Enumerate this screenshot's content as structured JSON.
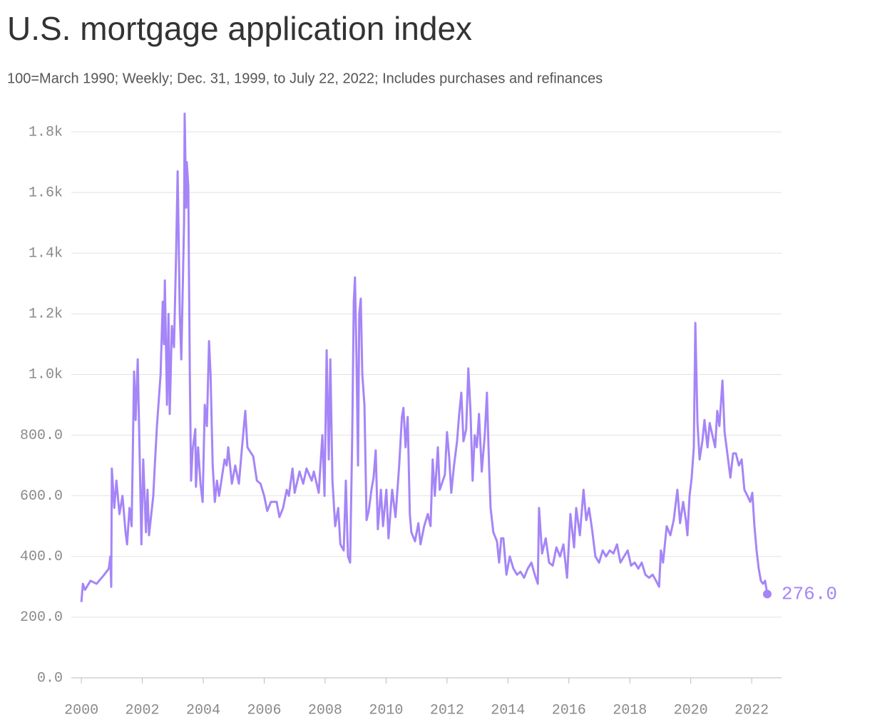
{
  "chart_data": {
    "type": "line",
    "title": "U.S. mortgage application index",
    "subtitle": "100=March 1990; Weekly; Dec. 31, 1999, to July 22, 2022; Includes purchases and refinances",
    "color": "#a585f7",
    "last_value_label": "276.0",
    "grid": true,
    "xlim": [
      1999.67,
      2022.98
    ],
    "xticks": [
      2000,
      2002,
      2004,
      2006,
      2008,
      2010,
      2012,
      2014,
      2016,
      2018,
      2020,
      2022
    ],
    "ylim": [
      0,
      1800
    ],
    "yticks": [
      {
        "value": 0,
        "label": "0.0"
      },
      {
        "value": 200,
        "label": "200.0"
      },
      {
        "value": 400,
        "label": "400.0"
      },
      {
        "value": 600,
        "label": "600.0"
      },
      {
        "value": 800,
        "label": "800.0"
      },
      {
        "value": 1000,
        "label": "1.0k"
      },
      {
        "value": 1200,
        "label": "1.2k"
      },
      {
        "value": 1400,
        "label": "1.4k"
      },
      {
        "value": 1600,
        "label": "1.6k"
      },
      {
        "value": 1800,
        "label": "1.8k"
      }
    ],
    "x": [
      2000.0,
      2000.05,
      2000.12,
      2000.3,
      2000.5,
      2000.75,
      2000.9,
      2000.95,
      2000.98,
      2001.0,
      2001.08,
      2001.15,
      2001.25,
      2001.35,
      2001.45,
      2001.5,
      2001.58,
      2001.65,
      2001.73,
      2001.78,
      2001.85,
      2001.92,
      2001.97,
      2002.03,
      2002.12,
      2002.17,
      2002.22,
      2002.36,
      2002.41,
      2002.48,
      2002.6,
      2002.67,
      2002.71,
      2002.74,
      2002.81,
      2002.86,
      2002.9,
      2002.97,
      2003.04,
      2003.11,
      2003.16,
      2003.23,
      2003.28,
      2003.37,
      2003.39,
      2003.44,
      2003.46,
      2003.51,
      2003.53,
      2003.56,
      2003.6,
      2003.65,
      2003.74,
      2003.76,
      2003.83,
      2003.91,
      2003.98,
      2004.05,
      2004.12,
      2004.19,
      2004.24,
      2004.31,
      2004.38,
      2004.45,
      2004.52,
      2004.7,
      2004.77,
      2004.82,
      2004.94,
      2005.05,
      2005.17,
      2005.29,
      2005.38,
      2005.45,
      2005.64,
      2005.76,
      2005.88,
      2006.0,
      2006.1,
      2006.22,
      2006.41,
      2006.5,
      2006.62,
      2006.74,
      2006.81,
      2006.93,
      2007.0,
      2007.16,
      2007.28,
      2007.39,
      2007.56,
      2007.63,
      2007.79,
      2007.91,
      2007.98,
      2008.05,
      2008.12,
      2008.17,
      2008.24,
      2008.33,
      2008.43,
      2008.5,
      2008.61,
      2008.68,
      2008.75,
      2008.82,
      2008.89,
      2008.94,
      2008.98,
      2009.03,
      2009.08,
      2009.12,
      2009.17,
      2009.22,
      2009.29,
      2009.36,
      2009.43,
      2009.52,
      2009.59,
      2009.66,
      2009.73,
      2009.83,
      2009.9,
      2010.01,
      2010.08,
      2010.2,
      2010.31,
      2010.43,
      2010.52,
      2010.57,
      2010.64,
      2010.71,
      2010.78,
      2010.83,
      2010.95,
      2011.06,
      2011.13,
      2011.25,
      2011.37,
      2011.46,
      2011.53,
      2011.6,
      2011.7,
      2011.76,
      2011.83,
      2011.93,
      2012.0,
      2012.07,
      2012.14,
      2012.23,
      2012.33,
      2012.4,
      2012.47,
      2012.54,
      2012.63,
      2012.7,
      2012.77,
      2012.84,
      2012.91,
      2012.98,
      2013.05,
      2013.14,
      2013.24,
      2013.31,
      2013.38,
      2013.43,
      2013.52,
      2013.64,
      2013.71,
      2013.78,
      2013.85,
      2013.95,
      2014.06,
      2014.18,
      2014.3,
      2014.41,
      2014.53,
      2014.65,
      2014.77,
      2014.88,
      2014.98,
      2015.02,
      2015.12,
      2015.24,
      2015.35,
      2015.47,
      2015.59,
      2015.71,
      2015.82,
      2015.94,
      2016.05,
      2016.17,
      2016.24,
      2016.36,
      2016.48,
      2016.57,
      2016.66,
      2016.76,
      2016.87,
      2016.99,
      2017.11,
      2017.22,
      2017.34,
      2017.46,
      2017.58,
      2017.69,
      2017.81,
      2017.93,
      2018.04,
      2018.16,
      2018.28,
      2018.39,
      2018.51,
      2018.63,
      2018.75,
      2018.86,
      2018.96,
      2019.02,
      2019.09,
      2019.21,
      2019.33,
      2019.44,
      2019.56,
      2019.65,
      2019.75,
      2019.84,
      2019.89,
      2019.96,
      2020.03,
      2020.1,
      2020.15,
      2020.22,
      2020.29,
      2020.38,
      2020.45,
      2020.55,
      2020.62,
      2020.71,
      2020.8,
      2020.87,
      2020.94,
      2021.04,
      2021.11,
      2021.2,
      2021.3,
      2021.39,
      2021.48,
      2021.58,
      2021.67,
      2021.76,
      2021.86,
      2021.95,
      2022.02,
      2022.09,
      2022.16,
      2022.23,
      2022.3,
      2022.37,
      2022.44,
      2022.51
    ],
    "values": [
      250,
      310,
      290,
      320,
      310,
      340,
      360,
      400,
      300,
      690,
      560,
      650,
      540,
      600,
      480,
      440,
      560,
      500,
      1010,
      850,
      1050,
      700,
      440,
      720,
      480,
      620,
      470,
      600,
      700,
      830,
      1000,
      1240,
      1100,
      1310,
      900,
      1200,
      870,
      1160,
      1090,
      1400,
      1670,
      1200,
      1050,
      1500,
      1860,
      1550,
      1700,
      1620,
      1350,
      1000,
      650,
      750,
      820,
      630,
      760,
      640,
      580,
      900,
      830,
      1110,
      1000,
      700,
      580,
      650,
      600,
      720,
      700,
      760,
      640,
      700,
      640,
      780,
      880,
      760,
      730,
      650,
      640,
      600,
      550,
      580,
      580,
      530,
      560,
      620,
      600,
      690,
      610,
      680,
      640,
      690,
      650,
      680,
      610,
      800,
      600,
      1080,
      720,
      1050,
      650,
      500,
      560,
      440,
      420,
      650,
      400,
      380,
      800,
      1240,
      1320,
      1050,
      700,
      1200,
      1250,
      1000,
      900,
      520,
      550,
      620,
      660,
      750,
      490,
      620,
      500,
      620,
      460,
      620,
      530,
      700,
      860,
      890,
      760,
      860,
      540,
      480,
      450,
      510,
      440,
      500,
      540,
      500,
      720,
      600,
      760,
      620,
      640,
      670,
      810,
      730,
      610,
      700,
      780,
      870,
      940,
      780,
      820,
      1020,
      880,
      650,
      800,
      760,
      870,
      680,
      800,
      940,
      700,
      560,
      480,
      450,
      380,
      460,
      460,
      340,
      400,
      360,
      340,
      350,
      330,
      360,
      380,
      340,
      310,
      560,
      410,
      460,
      380,
      370,
      430,
      400,
      440,
      330,
      540,
      430,
      560,
      470,
      620,
      520,
      560,
      490,
      400,
      380,
      420,
      400,
      420,
      410,
      440,
      380,
      400,
      420,
      370,
      380,
      360,
      380,
      340,
      330,
      340,
      320,
      300,
      420,
      380,
      500,
      470,
      520,
      620,
      510,
      580,
      520,
      470,
      600,
      660,
      760,
      1170,
      840,
      720,
      780,
      850,
      760,
      840,
      800,
      760,
      880,
      830,
      980,
      810,
      740,
      660,
      740,
      740,
      700,
      720,
      620,
      600,
      580,
      610,
      500,
      420,
      360,
      320,
      310,
      320,
      276
    ]
  }
}
